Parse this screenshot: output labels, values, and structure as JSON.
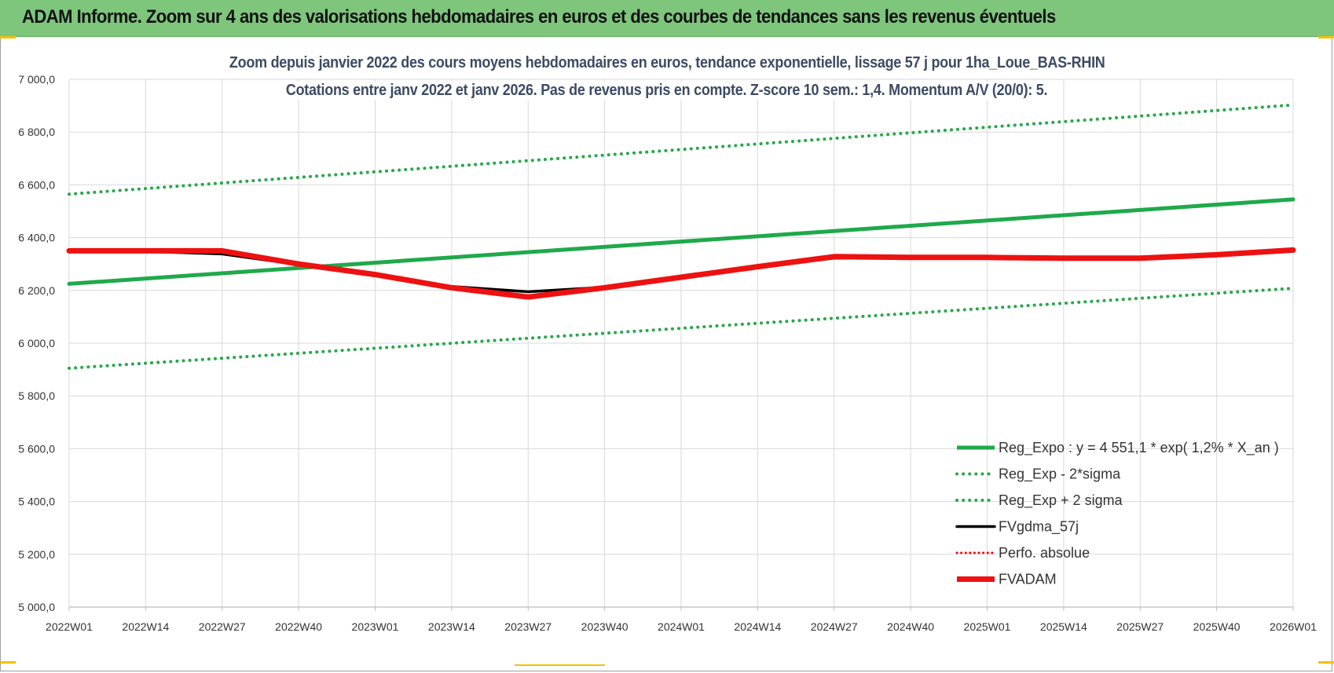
{
  "banner": {
    "title": "ADAM Informe. Zoom sur 4 ans des valorisations hebdomadaires en euros et des courbes de tendances sans les revenus éventuels"
  },
  "colors": {
    "banner_bg": "#7dc67c",
    "trend_green": "#1fa94b",
    "band_green": "#26a84a",
    "fvgdma_black": "#000000",
    "perfo_red": "#ff0000",
    "fvadam_red": "#ee1111",
    "title_text": "#3d4a63",
    "corner_accent": "#f2c200"
  },
  "chart_data": {
    "type": "line",
    "title_line1": "Zoom depuis janvier 2022 des cours moyens hebdomadaires en euros, tendance exponentielle, lissage 57 j pour 1ha_Loue_BAS-RHIN",
    "title_line2": "Cotations entre janv 2022 et janv 2026. Pas de revenus pris en compte. Z-score 10 sem.: 1,4. Momentum A/V (20/0): 5.",
    "xlabel": "",
    "ylabel": "",
    "ylim": [
      5000,
      7000
    ],
    "y_ticks": [
      "7 000,0",
      "6 800,0",
      "6 600,0",
      "6 400,0",
      "6 200,0",
      "6 000,0",
      "5 800,0",
      "5 600,0",
      "5 400,0",
      "5 200,0",
      "5 000,0"
    ],
    "x_ticks": [
      "2022W01",
      "2022W14",
      "2022W27",
      "2022W40",
      "2023W01",
      "2023W14",
      "2023W27",
      "2023W40",
      "2024W01",
      "2024W14",
      "2024W27",
      "2024W40",
      "2025W01",
      "2025W14",
      "2025W27",
      "2025W40",
      "2026W01"
    ],
    "grid": true,
    "legend_position": "bottom-right",
    "series": [
      {
        "name": "Reg_Expo : y = 4 551,1 * exp( 1,2% *  X_an )",
        "style": "solid-thick",
        "color": "#1fa94b",
        "x": [
          "2022W01",
          "2026W01"
        ],
        "values": [
          6225,
          6545
        ]
      },
      {
        "name": "Reg_Exp - 2*sigma",
        "style": "dotted",
        "color": "#26a84a",
        "x": [
          "2022W01",
          "2026W01"
        ],
        "values": [
          5905,
          6208
        ]
      },
      {
        "name": "Reg_Exp + 2 sigma",
        "style": "dotted",
        "color": "#26a84a",
        "x": [
          "2022W01",
          "2026W01"
        ],
        "values": [
          6565,
          6903
        ]
      },
      {
        "name": "FVgdma_57j",
        "style": "solid",
        "color": "#000000",
        "x": [
          "2022W01",
          "2022W14",
          "2022W27",
          "2022W40",
          "2023W01",
          "2023W14",
          "2023W27",
          "2023W40",
          "2024W01",
          "2024W14",
          "2024W27",
          "2024W40",
          "2025W01",
          "2025W14",
          "2025W27",
          "2025W40",
          "2026W01"
        ],
        "values": [
          6350,
          6348,
          6338,
          6298,
          6262,
          6215,
          6195,
          6212,
          6250,
          6290,
          6322,
          6325,
          6325,
          6322,
          6322,
          6335,
          6352
        ]
      },
      {
        "name": "Perfo. absolue",
        "style": "dotted",
        "color": "#ff0000",
        "x": [
          "2022W01",
          "2022W14",
          "2022W27",
          "2022W40",
          "2023W01",
          "2023W14",
          "2023W27",
          "2023W40",
          "2024W01",
          "2024W14",
          "2024W27",
          "2024W40",
          "2025W01",
          "2025W14",
          "2025W27",
          "2025W40",
          "2026W01"
        ],
        "values": [
          6350,
          6350,
          6350,
          6300,
          6260,
          6210,
          6175,
          6210,
          6250,
          6290,
          6328,
          6325,
          6325,
          6322,
          6322,
          6335,
          6353
        ]
      },
      {
        "name": "FVADAM",
        "style": "solid-thick",
        "color": "#ee1111",
        "x": [
          "2022W01",
          "2022W14",
          "2022W27",
          "2022W40",
          "2023W01",
          "2023W14",
          "2023W27",
          "2023W40",
          "2024W01",
          "2024W14",
          "2024W27",
          "2024W40",
          "2025W01",
          "2025W14",
          "2025W27",
          "2025W40",
          "2026W01"
        ],
        "values": [
          6350,
          6350,
          6350,
          6300,
          6260,
          6210,
          6175,
          6210,
          6250,
          6290,
          6328,
          6325,
          6325,
          6322,
          6322,
          6335,
          6353
        ]
      }
    ]
  }
}
